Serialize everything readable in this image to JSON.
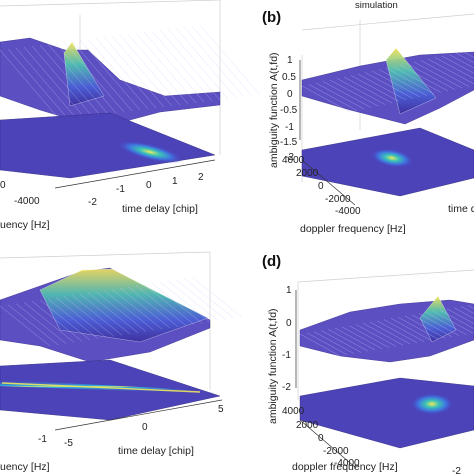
{
  "chart_data": [
    {
      "type": "surface",
      "panel_label": "",
      "view": "partially cropped at left",
      "xlabel": "time delay [chip]",
      "ylabel": "",
      "ylabel_fragment": "uency [Hz]",
      "x_ticks": [
        "-2",
        "-1",
        "0",
        "1",
        "2"
      ],
      "y_ticks": [
        "-4000",
        "0"
      ],
      "peak": {
        "time_delay": 0,
        "doppler": 0,
        "value": 1.0
      },
      "shape": "triangular peak above contour plane"
    },
    {
      "type": "surface",
      "panel_label": "(b)",
      "title": "simulation",
      "zlabel": "ambiguity function A(t,fd)",
      "xlabel_fragment": "time d",
      "ylabel": "doppler frequency  [Hz]",
      "z_ticks": [
        "1",
        "0.5",
        "0",
        "-0.5",
        "-1",
        "-1.5",
        "-2"
      ],
      "y_ticks": [
        "4000",
        "2000",
        "0",
        "-2000",
        "-4000"
      ],
      "peak": {
        "time_delay": 0,
        "doppler": 0,
        "value": 1.0
      },
      "shape": "triangular peak above contour plane"
    },
    {
      "type": "surface",
      "panel_label": "",
      "view": "partially cropped at left",
      "xlabel": "time delay [chip]",
      "ylabel_fragment": "uency [Hz]",
      "x_ticks": [
        "-5",
        "0",
        "5"
      ],
      "y_ticks": [
        "-1"
      ],
      "peak": {
        "time_delay": 0,
        "doppler": 0,
        "value": 1.0
      },
      "shape": "broad ridge above contour plane"
    },
    {
      "type": "surface",
      "panel_label": "(d)",
      "zlabel": "ambiguity function A(t,fd)",
      "ylabel": "doppler frequency [Hz]",
      "z_ticks": [
        "1",
        "0",
        "-1",
        "-2"
      ],
      "y_ticks": [
        "4000",
        "2000",
        "0",
        "-2000",
        "-4000"
      ],
      "x_ticks": [
        "-2"
      ],
      "peak": {
        "time_delay": 0,
        "doppler": 0,
        "value": 1.0
      },
      "shape": "sharp peak with side lobes above contour plane"
    }
  ]
}
